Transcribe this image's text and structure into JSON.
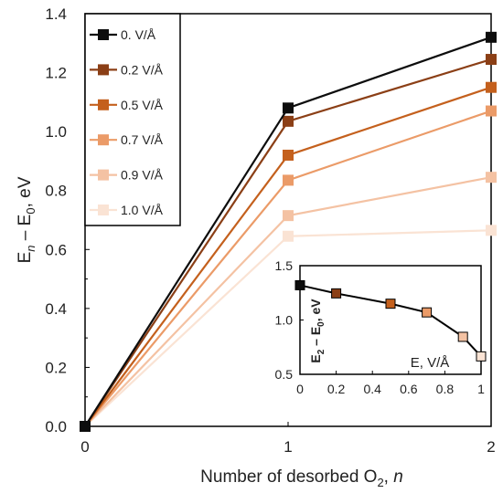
{
  "chart_data": [
    {
      "type": "line",
      "x": [
        0,
        1,
        2
      ],
      "xticks": [
        "0",
        "1",
        "2"
      ],
      "xlabel": {
        "main": "Number of desorbed O",
        "sub": "2",
        "tail": ", ",
        "ital": "n"
      },
      "ylabel": {
        "a": "E",
        "a_sub": "n",
        "b": " – E",
        "b_sub": "0",
        "c": ", eV"
      },
      "yticks": [
        "0.0",
        "0.2",
        "0.4",
        "0.6",
        "0.8",
        "1.0",
        "1.2",
        "1.4"
      ],
      "xlim": [
        0,
        2
      ],
      "ylim": [
        0,
        1.4
      ],
      "legend_position": "top-left",
      "series": [
        {
          "name": "0. V/Å",
          "color": "#0d0d0d",
          "values": [
            0,
            1.08,
            1.32
          ]
        },
        {
          "name": "0.2 V/Å",
          "color": "#8b3f16",
          "values": [
            0,
            1.035,
            1.245
          ]
        },
        {
          "name": "0.5 V/Å",
          "color": "#c4601d",
          "values": [
            0,
            0.92,
            1.15
          ]
        },
        {
          "name": "0.7 V/Å",
          "color": "#eb9b68",
          "values": [
            0,
            0.835,
            1.07
          ]
        },
        {
          "name": "0.9 V/Å",
          "color": "#f4c2a3",
          "values": [
            0,
            0.715,
            0.845
          ]
        },
        {
          "name": "1.0 V/Å",
          "color": "#fae3d4",
          "values": [
            0,
            0.645,
            0.665
          ]
        }
      ]
    },
    {
      "type": "line",
      "xlabel": "E, V/Å",
      "ylabel": {
        "a": "E",
        "a_sub": "2",
        "b": " – E",
        "b_sub": "0",
        "c": ", eV"
      },
      "xticks": [
        "0",
        "0.2",
        "0.4",
        "0.6",
        "0.8",
        "1"
      ],
      "yticks": [
        "0.5",
        "1.0",
        "1.5"
      ],
      "xlim": [
        0,
        1
      ],
      "ylim": [
        0.5,
        1.5
      ],
      "x": [
        0,
        0.2,
        0.5,
        0.7,
        0.9,
        1.0
      ],
      "values": [
        1.32,
        1.245,
        1.15,
        1.07,
        0.845,
        0.665
      ],
      "marker_colors": [
        "#0d0d0d",
        "#8b3f16",
        "#c4601d",
        "#eb9b68",
        "#f4c2a3",
        "#fae3d4"
      ]
    }
  ]
}
